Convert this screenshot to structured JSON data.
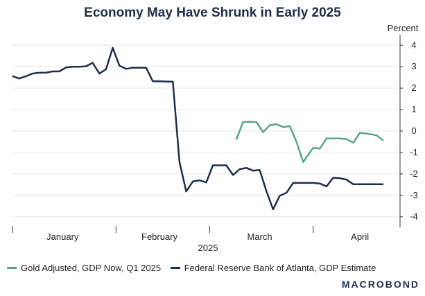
{
  "chart_data": {
    "type": "line",
    "title": "Economy May Have Shrunk in Early 2025",
    "ylabel": "Percent",
    "xlabel": "2025",
    "ylim": [
      -4.3,
      4.3
    ],
    "yticks": [
      4,
      3,
      2,
      1,
      0,
      -1,
      -2,
      -3,
      -4
    ],
    "xlim": [
      "2025-01-01",
      "2025-04-27"
    ],
    "xticks": [
      {
        "label": "January",
        "date": "2025-01-16"
      },
      {
        "label": "February",
        "date": "2025-02-14"
      },
      {
        "label": "March",
        "date": "2025-03-16"
      },
      {
        "label": "April",
        "date": "2025-04-15"
      }
    ],
    "month_boundaries": [
      "2025-01-01",
      "2025-02-01",
      "2025-03-01",
      "2025-04-01"
    ],
    "grid": true,
    "legend_position": "bottom",
    "series": [
      {
        "name": "Gold Adjusted, GDP Now, Q1 2025",
        "color": "#5aa58a",
        "x": [
          "2025-03-09",
          "2025-03-11",
          "2025-03-13",
          "2025-03-15",
          "2025-03-17",
          "2025-03-19",
          "2025-03-21",
          "2025-03-23",
          "2025-03-25",
          "2025-03-27",
          "2025-03-29",
          "2025-04-01",
          "2025-04-03",
          "2025-04-05",
          "2025-04-07",
          "2025-04-09",
          "2025-04-11",
          "2025-04-13",
          "2025-04-15",
          "2025-04-17",
          "2025-04-20",
          "2025-04-22"
        ],
        "values": [
          -0.4,
          0.42,
          0.43,
          0.42,
          -0.05,
          0.27,
          0.32,
          0.18,
          0.23,
          -0.5,
          -1.45,
          -0.78,
          -0.82,
          -0.35,
          -0.35,
          -0.35,
          -0.38,
          -0.55,
          -0.08,
          -0.12,
          -0.2,
          -0.45
        ]
      },
      {
        "name": "Federal Reserve Bank of Atlanta, GDP Estimate",
        "color": "#1d2e4a",
        "x": [
          "2025-01-01",
          "2025-01-03",
          "2025-01-05",
          "2025-01-07",
          "2025-01-09",
          "2025-01-11",
          "2025-01-13",
          "2025-01-15",
          "2025-01-17",
          "2025-01-19",
          "2025-01-21",
          "2025-01-23",
          "2025-01-25",
          "2025-01-27",
          "2025-01-29",
          "2025-01-31",
          "2025-02-02",
          "2025-02-04",
          "2025-02-06",
          "2025-02-08",
          "2025-02-10",
          "2025-02-12",
          "2025-02-14",
          "2025-02-16",
          "2025-02-18",
          "2025-02-20",
          "2025-02-22",
          "2025-02-24",
          "2025-02-26",
          "2025-02-28",
          "2025-03-02",
          "2025-03-04",
          "2025-03-06",
          "2025-03-08",
          "2025-03-10",
          "2025-03-12",
          "2025-03-14",
          "2025-03-16",
          "2025-03-18",
          "2025-03-20",
          "2025-03-22",
          "2025-03-24",
          "2025-03-26",
          "2025-03-28",
          "2025-03-30",
          "2025-04-01",
          "2025-04-03",
          "2025-04-05",
          "2025-04-07",
          "2025-04-09",
          "2025-04-11",
          "2025-04-13",
          "2025-04-15",
          "2025-04-17",
          "2025-04-20",
          "2025-04-22"
        ],
        "values": [
          2.56,
          2.45,
          2.55,
          2.68,
          2.72,
          2.72,
          2.78,
          2.78,
          2.96,
          3.0,
          3.0,
          3.02,
          3.18,
          2.68,
          2.88,
          3.88,
          3.05,
          2.9,
          2.95,
          2.95,
          2.95,
          2.32,
          2.32,
          2.31,
          2.3,
          -1.45,
          -2.82,
          -2.35,
          -2.3,
          -2.4,
          -1.6,
          -1.6,
          -1.6,
          -2.05,
          -1.78,
          -1.72,
          -1.85,
          -1.82,
          -2.8,
          -3.65,
          -3.02,
          -2.88,
          -2.42,
          -2.42,
          -2.42,
          -2.42,
          -2.45,
          -2.58,
          -2.18,
          -2.2,
          -2.27,
          -2.48,
          -2.48,
          -2.48,
          -2.48,
          -2.48
        ]
      }
    ]
  },
  "legend": {
    "items": [
      {
        "label": "Gold Adjusted, GDP Now, Q1 2025"
      },
      {
        "label": "Federal Reserve Bank of Atlanta, GDP Estimate"
      }
    ]
  },
  "branding": {
    "logo_text": "MACROBOND"
  }
}
